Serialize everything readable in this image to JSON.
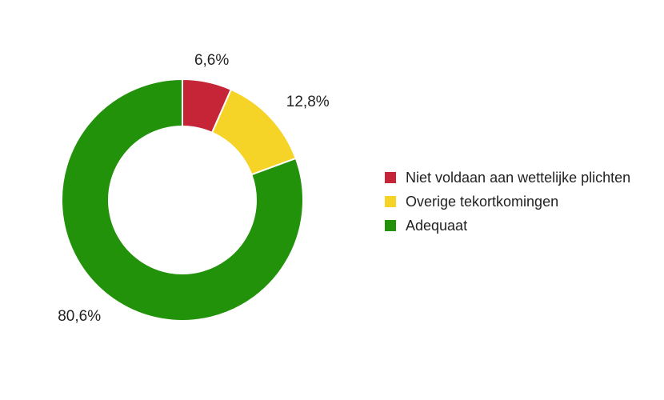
{
  "chart_data": {
    "type": "pie",
    "variant": "donut",
    "title": "",
    "categories": [
      "Niet voldaan aan wettelijke plichten",
      "Overige tekortkomingen",
      "Adequaat"
    ],
    "values": [
      6.6,
      12.8,
      80.6
    ],
    "value_labels": [
      "6,6%",
      "12,8%",
      "80,6%"
    ],
    "colors": [
      "#c62437",
      "#f5d327",
      "#22920a"
    ],
    "legend_position": "right",
    "start_angle": "top, clockwise"
  }
}
